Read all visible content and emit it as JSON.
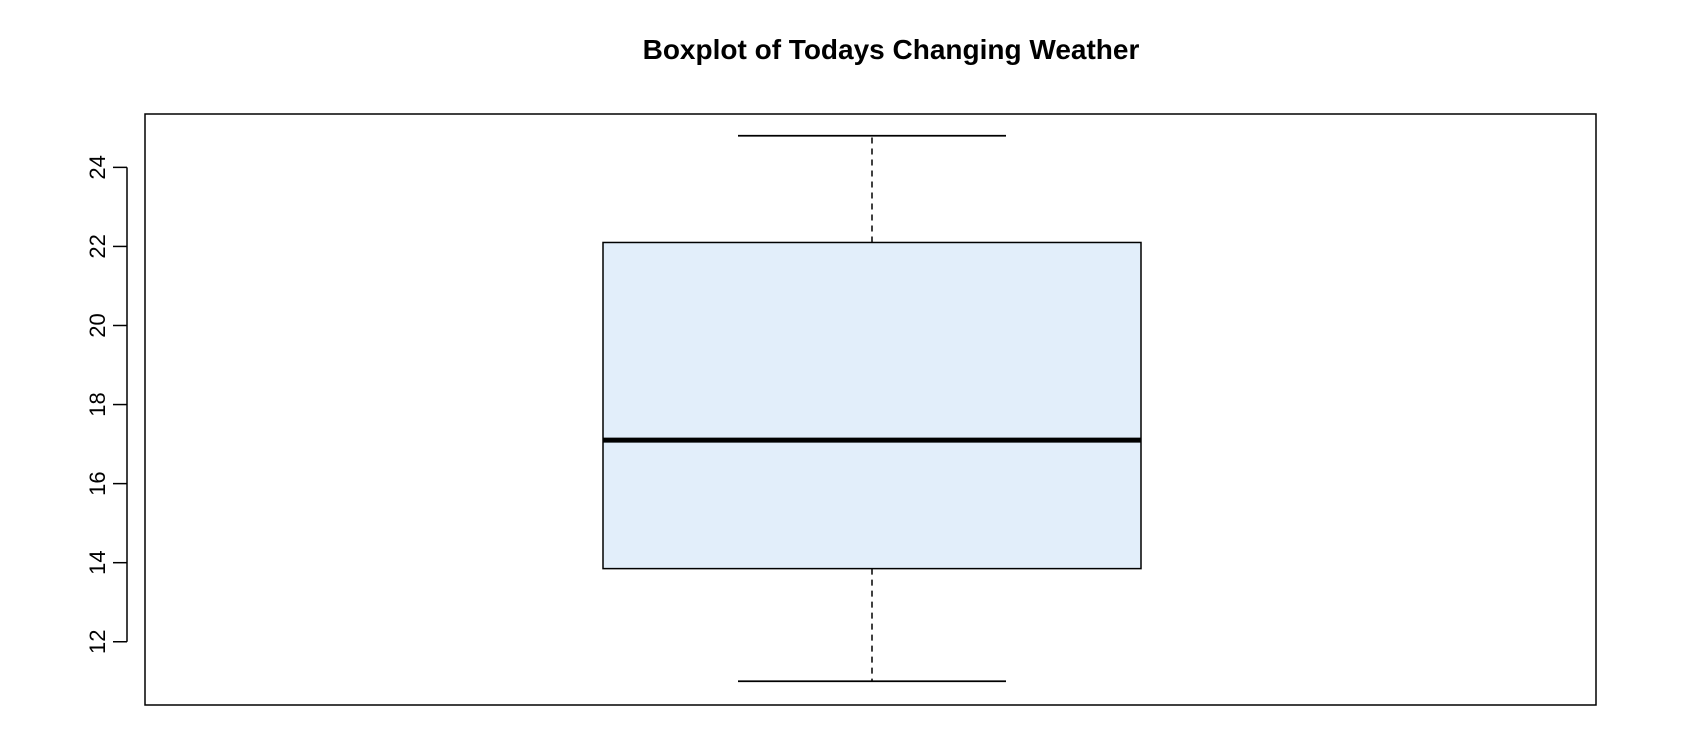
{
  "chart_data": {
    "type": "box",
    "title": "Boxplot of Todays Changing Weather",
    "xlabel": "",
    "ylabel": "",
    "ylim": [
      10.4,
      25.35
    ],
    "yticks": [
      12,
      14,
      16,
      18,
      20,
      22,
      24
    ],
    "grid": false,
    "box": {
      "min": 11.0,
      "q1": 13.85,
      "median": 17.1,
      "q3": 22.1,
      "max": 24.8
    },
    "colors": {
      "box_fill": "#e2eefa",
      "stroke": "#000000"
    }
  }
}
